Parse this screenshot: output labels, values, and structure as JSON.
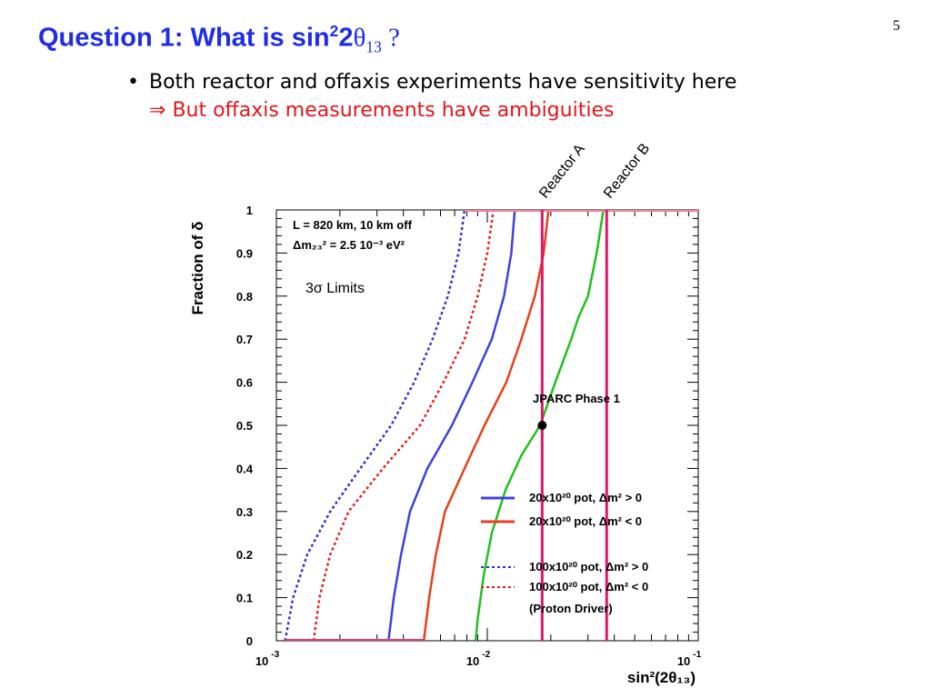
{
  "slide": {
    "number": "5",
    "title_main": "Question 1:  What is sin",
    "title_sup": "2",
    "title_mid": "2",
    "title_theta": "θ",
    "title_sub": "13",
    "title_end": " ?",
    "bullet": "Both reactor and offaxis experiments have sensitivity here",
    "implication_arrow": "⇒",
    "implication": "But offaxis measurements have ambiguities"
  },
  "chart_data": {
    "type": "line",
    "xlabel": "sin²(2θ₁₃)",
    "ylabel": "Fraction of δ",
    "xscale": "log",
    "xlim": [
      0.001,
      0.1
    ],
    "ylim": [
      0,
      1
    ],
    "x_ticks": [
      {
        "value": 0.001,
        "base": "10",
        "exp": "-3"
      },
      {
        "value": 0.01,
        "base": "10",
        "exp": "-2"
      },
      {
        "value": 0.1,
        "base": "10",
        "exp": "-1"
      }
    ],
    "y_ticks": [
      "0",
      "0.1",
      "0.2",
      "0.3",
      "0.4",
      "0.5",
      "0.6",
      "0.7",
      "0.8",
      "0.9",
      "1"
    ],
    "info_line1": "L = 820 km, 10 km off",
    "info_line2": "Δm₂₃² = 2.5 10⁻³ eV²",
    "limits_label": "3σ Limits",
    "series": [
      {
        "name": "100x10²⁰ pot, Δm² > 0",
        "color": "#3030e0",
        "style": "dotted",
        "points": [
          [
            0.0011,
            0
          ],
          [
            0.0012,
            0.1
          ],
          [
            0.0014,
            0.2
          ],
          [
            0.0018,
            0.3
          ],
          [
            0.0025,
            0.4
          ],
          [
            0.0035,
            0.5
          ],
          [
            0.0045,
            0.6
          ],
          [
            0.0055,
            0.7
          ],
          [
            0.0065,
            0.8
          ],
          [
            0.0073,
            0.9
          ],
          [
            0.0078,
            1.0
          ]
        ]
      },
      {
        "name": "100x10²⁰ pot, Δm² < 0",
        "color": "#e32020",
        "style": "dotted",
        "points": [
          [
            0.0015,
            0
          ],
          [
            0.0016,
            0.1
          ],
          [
            0.0018,
            0.2
          ],
          [
            0.0022,
            0.3
          ],
          [
            0.0032,
            0.4
          ],
          [
            0.0048,
            0.5
          ],
          [
            0.0062,
            0.6
          ],
          [
            0.0078,
            0.7
          ],
          [
            0.009,
            0.8
          ],
          [
            0.01,
            0.9
          ],
          [
            0.0107,
            1.0
          ]
        ]
      },
      {
        "name": "20x10²⁰ pot, Δm² > 0",
        "color": "#4040e0",
        "style": "solid",
        "points": [
          [
            0.0034,
            0
          ],
          [
            0.0036,
            0.1
          ],
          [
            0.0039,
            0.2
          ],
          [
            0.0043,
            0.3
          ],
          [
            0.0052,
            0.4
          ],
          [
            0.0068,
            0.5
          ],
          [
            0.0085,
            0.6
          ],
          [
            0.0105,
            0.7
          ],
          [
            0.012,
            0.8
          ],
          [
            0.013,
            0.9
          ],
          [
            0.0135,
            1.0
          ]
        ]
      },
      {
        "name": "20x10²⁰ pot, Δm² < 0",
        "color": "#e8401c",
        "style": "solid",
        "points": [
          [
            0.005,
            0
          ],
          [
            0.0053,
            0.1
          ],
          [
            0.0057,
            0.2
          ],
          [
            0.0063,
            0.3
          ],
          [
            0.0078,
            0.4
          ],
          [
            0.0097,
            0.5
          ],
          [
            0.0123,
            0.6
          ],
          [
            0.0145,
            0.7
          ],
          [
            0.0168,
            0.8
          ],
          [
            0.0185,
            0.9
          ],
          [
            0.0195,
            1.0
          ]
        ]
      },
      {
        "name": "JPARC Phase 1",
        "color": "#1ec21e",
        "style": "solid",
        "points": [
          [
            0.0088,
            0
          ],
          [
            0.009,
            0.05
          ],
          [
            0.0096,
            0.15
          ],
          [
            0.0105,
            0.25
          ],
          [
            0.0122,
            0.35
          ],
          [
            0.0145,
            0.43
          ],
          [
            0.0178,
            0.5
          ],
          [
            0.021,
            0.6
          ],
          [
            0.025,
            0.7
          ],
          [
            0.027,
            0.75
          ],
          [
            0.03,
            0.8
          ],
          [
            0.033,
            0.9
          ],
          [
            0.0355,
            1.0
          ]
        ]
      }
    ],
    "reactor_lines": [
      {
        "label": "Reactor A",
        "x": 0.0182,
        "color": "#e0186a"
      },
      {
        "label": "Reactor B",
        "x": 0.0368,
        "color": "#e0186a"
      }
    ],
    "jparc_point": {
      "label": "JPARC Phase 1",
      "x": 0.0182,
      "y": 0.5
    },
    "legend": [
      {
        "text": "20x10²⁰ pot, Δm² >  0",
        "color": "#4040e0",
        "style": "solid"
      },
      {
        "text": "20x10²⁰ pot, Δm² <  0",
        "color": "#e8401c",
        "style": "solid"
      },
      {
        "text": "100x10²⁰ pot, Δm² >  0",
        "color": "#3030e0",
        "style": "dotted"
      },
      {
        "text": "100x10²⁰ pot, Δm² <  0",
        "color": "#e32020",
        "style": "dotted"
      },
      {
        "text": "(Proton Driver)",
        "color": "",
        "style": "none"
      }
    ]
  }
}
